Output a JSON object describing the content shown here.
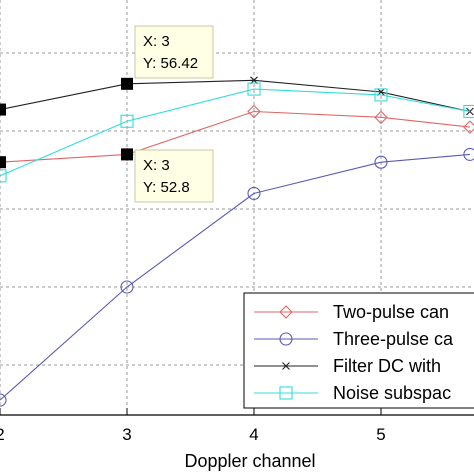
{
  "chart_data": {
    "type": "line",
    "xlabel": "Doppler channel",
    "ylabel": "",
    "title": "",
    "xlim": [
      1.05,
      5.7
    ],
    "ylim": [
      40,
      61
    ],
    "x_ticks": [
      2,
      3,
      4,
      5
    ],
    "grid": true,
    "legend_position": "bottom-right",
    "series": [
      {
        "name": "Two-pulse can",
        "color": "#e06666",
        "marker": "diamond",
        "x": [
          2,
          3,
          4,
          5,
          5.7
        ],
        "y": [
          52.4,
          52.8,
          55.0,
          54.7,
          54.2
        ]
      },
      {
        "name": "Three-pulse ca",
        "color": "#5a5ab4",
        "marker": "circle",
        "x": [
          2,
          3,
          4,
          5,
          5.7
        ],
        "y": [
          40.2,
          46.0,
          50.8,
          52.4,
          52.8
        ]
      },
      {
        "name": "Filter DC with",
        "color": "#222222",
        "marker": "x",
        "x": [
          2,
          3,
          4,
          5,
          5.7
        ],
        "y": [
          55.1,
          56.42,
          56.6,
          56.0,
          55.0
        ]
      },
      {
        "name": "Noise subspac",
        "color": "#33dddd",
        "marker": "square",
        "x": [
          2,
          3,
          4,
          5,
          5.7
        ],
        "y": [
          51.7,
          54.5,
          56.15,
          55.85,
          55.0
        ]
      }
    ],
    "highlight_points": [
      {
        "series": "Filter DC with",
        "x": [
          2,
          3
        ],
        "y": [
          55.1,
          56.42
        ]
      },
      {
        "series": "Two-pulse can",
        "x": [
          2,
          3
        ],
        "y": [
          52.4,
          52.8
        ]
      }
    ],
    "annotations": [
      {
        "x_text": "X: 3",
        "y_text": "Y: 56.42",
        "point": {
          "x": 3,
          "y": 56.42
        }
      },
      {
        "x_text": "X: 3",
        "y_text": "Y: 52.8",
        "point": {
          "x": 3,
          "y": 52.8
        }
      }
    ],
    "tick_labels": [
      "2",
      "3",
      "4",
      "5"
    ]
  }
}
